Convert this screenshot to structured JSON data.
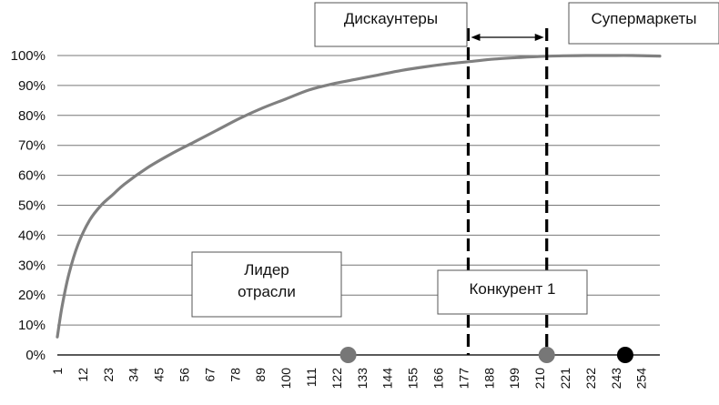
{
  "chart_data": {
    "type": "line",
    "title": "",
    "xlabel": "",
    "ylabel": "",
    "ylim": [
      0,
      100
    ],
    "y_ticks": [
      "0%",
      "10%",
      "20%",
      "30%",
      "40%",
      "50%",
      "60%",
      "70%",
      "80%",
      "90%",
      "100%"
    ],
    "x_ticks": [
      "1",
      "12",
      "23",
      "34",
      "45",
      "56",
      "67",
      "78",
      "89",
      "100",
      "111",
      "122",
      "133",
      "144",
      "155",
      "166",
      "177",
      "188",
      "199",
      "210",
      "221",
      "232",
      "243",
      "254"
    ],
    "xlim": [
      1,
      262
    ],
    "grid": "horizontal",
    "series": [
      {
        "x": [
          1,
          3,
          6,
          10,
          15,
          20,
          25,
          30,
          40,
          50,
          60,
          70,
          80,
          90,
          100,
          110,
          120,
          130,
          140,
          150,
          160,
          170,
          180,
          190,
          200,
          210,
          220,
          230,
          240,
          250,
          262
        ],
        "values": [
          6,
          16,
          27,
          37,
          45,
          50,
          53.5,
          57,
          62.5,
          67,
          71,
          75,
          79,
          82.5,
          85.5,
          88.5,
          90.5,
          92,
          93.5,
          95,
          96.2,
          97.2,
          98,
          98.8,
          99.3,
          99.7,
          99.9,
          100,
          100,
          100,
          99.8
        ],
        "color": "#808080"
      }
    ],
    "markers": [
      {
        "x": 127,
        "y": 0,
        "color": "#777777"
      },
      {
        "x": 213,
        "y": 0,
        "color": "#777777"
      },
      {
        "x": 247,
        "y": 0,
        "color": "#000000"
      }
    ],
    "vlines": [
      {
        "x": 179,
        "style": "dashed"
      },
      {
        "x": 213,
        "style": "dashed"
      }
    ],
    "annotations": [
      {
        "text": "Дискаунтеры"
      },
      {
        "text": "Супермаркеты"
      },
      {
        "text": "Лидер\nотрасли"
      },
      {
        "text": "Конкурент 1"
      }
    ]
  }
}
